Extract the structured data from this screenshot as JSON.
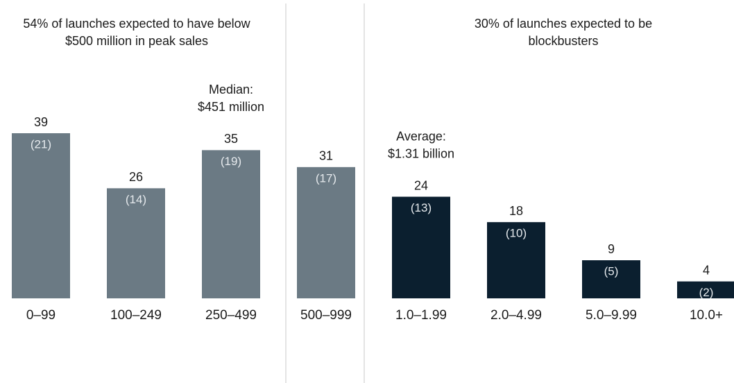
{
  "chart_data": {
    "type": "bar",
    "panels": [
      {
        "title": [
          "54% of launches expected to have below",
          "$500 million in peak sales"
        ]
      },
      {
        "title": [
          "30% of launches expected to be",
          "blockbusters"
        ]
      }
    ],
    "annotations": [
      {
        "text": [
          "Median:",
          "$451 million"
        ],
        "category": 2
      },
      {
        "text": [
          "Average:",
          "$1.31 billion"
        ],
        "category": 4
      }
    ],
    "categories": [
      "0–99",
      "100–249",
      "250–499",
      "500–999",
      "1.0–1.99",
      "2.0–4.99",
      "5.0–9.99",
      "10.0+"
    ],
    "values": [
      39,
      26,
      35,
      31,
      24,
      18,
      9,
      4
    ],
    "count_labels": [
      "(21)",
      "(14)",
      "(19)",
      "(17)",
      "(13)",
      "(10)",
      "(5)",
      "(2)"
    ],
    "colors": [
      "#6b7a84",
      "#6b7a84",
      "#6b7a84",
      "#6b7a84",
      "#0b1f2f",
      "#0b1f2f",
      "#0b1f2f",
      "#0b1f2f"
    ]
  }
}
